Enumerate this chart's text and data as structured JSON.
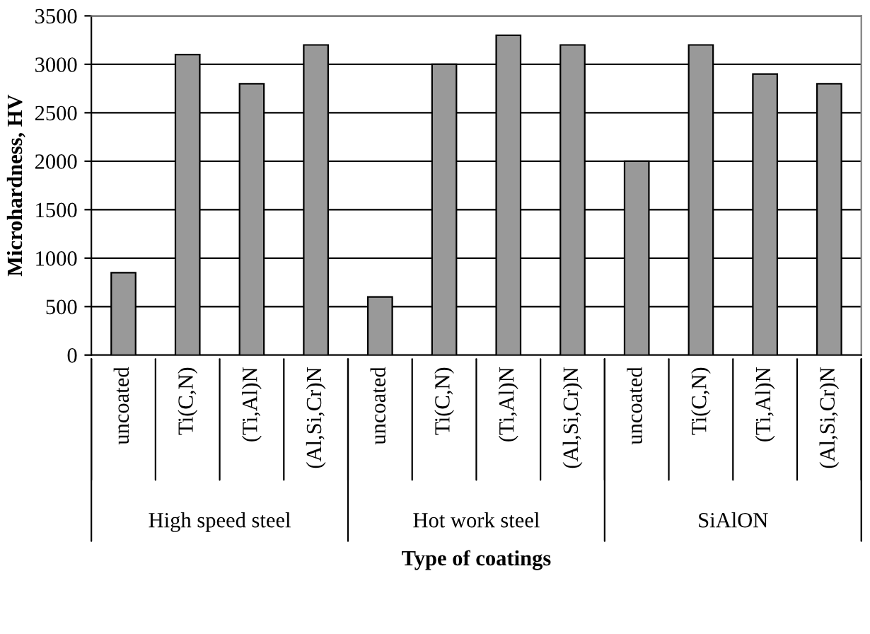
{
  "chart_data": {
    "type": "bar",
    "xlabel": "Type of coatings",
    "ylabel": "Microhardness, HV",
    "categories": [
      "uncoated",
      "Ti(C,N)",
      "(Ti,Al)N",
      "(Al,Si,Cr)N",
      "uncoated",
      "Ti(C,N)",
      "(Ti,Al)N",
      "(Al,Si,Cr)N",
      "uncoated",
      "Ti(C,N)",
      "(Ti,Al)N",
      "(Al,Si,Cr)N"
    ],
    "values": [
      850,
      3100,
      2800,
      3200,
      600,
      3000,
      3300,
      3200,
      2000,
      3200,
      2900,
      2800
    ],
    "color": "#999999",
    "ylim": [
      0,
      3500
    ],
    "yticks": [
      0,
      500,
      1000,
      1500,
      2000,
      2500,
      3000,
      3500
    ],
    "grid": "y",
    "annotations": [
      "High speed steel",
      "Hot work steel",
      "SiAlON"
    ]
  }
}
